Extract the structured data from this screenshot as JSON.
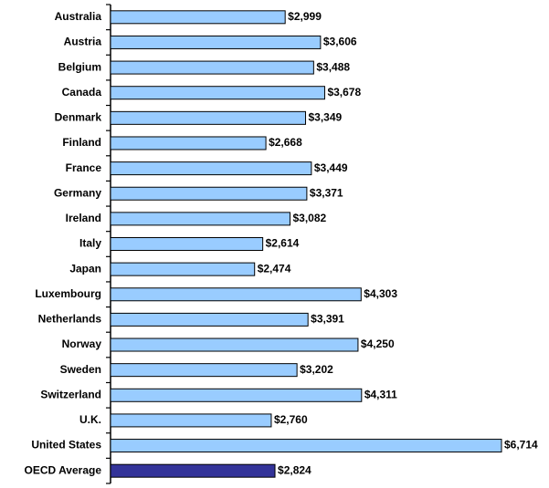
{
  "chart_data": {
    "type": "hbar",
    "categories": [
      "Australia",
      "Austria",
      "Belgium",
      "Canada",
      "Denmark",
      "Finland",
      "France",
      "Germany",
      "Ireland",
      "Italy",
      "Japan",
      "Luxembourg",
      "Netherlands",
      "Norway",
      "Sweden",
      "Switzerland",
      "U.K.",
      "United States",
      "OECD Average"
    ],
    "values": [
      2999,
      3606,
      3488,
      3678,
      3349,
      2668,
      3449,
      3371,
      3082,
      2614,
      2474,
      4303,
      3391,
      4250,
      3202,
      4311,
      2760,
      6714,
      2824
    ],
    "value_labels": [
      "$2,999",
      "$3,606",
      "$3,488",
      "$3,678",
      "$3,349",
      "$2,668",
      "$3,449",
      "$3,371",
      "$3,082",
      "$2,614",
      "$2,474",
      "$4,303",
      "$3,391",
      "$4,250",
      "$3,202",
      "$4,311",
      "$2,760",
      "$6,714",
      "$2,824"
    ],
    "colors": [
      "#99ccff",
      "#99ccff",
      "#99ccff",
      "#99ccff",
      "#99ccff",
      "#99ccff",
      "#99ccff",
      "#99ccff",
      "#99ccff",
      "#99ccff",
      "#99ccff",
      "#99ccff",
      "#99ccff",
      "#99ccff",
      "#99ccff",
      "#99ccff",
      "#99ccff",
      "#99ccff",
      "#333399"
    ]
  }
}
